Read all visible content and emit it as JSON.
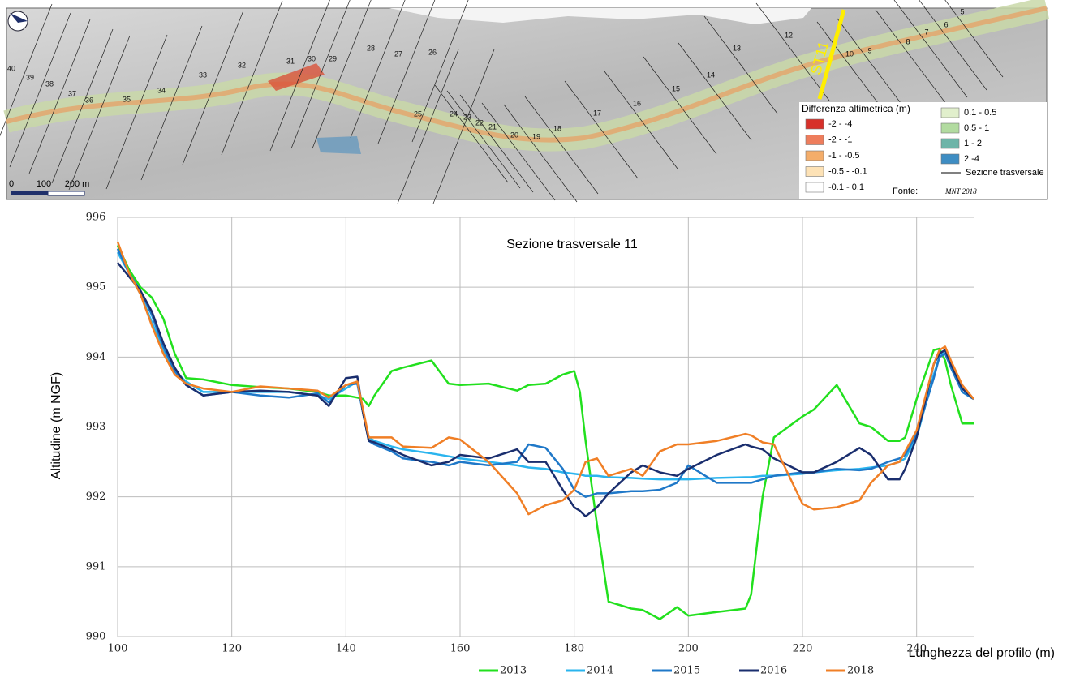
{
  "map": {
    "sections": [
      "40",
      "39",
      "38",
      "37",
      "36",
      "35",
      "34",
      "33",
      "32",
      "31",
      "30",
      "29",
      "28",
      "27",
      "26",
      "25",
      "24",
      "23",
      "22",
      "21",
      "20",
      "19",
      "18",
      "17",
      "16",
      "15",
      "14",
      "13",
      "12",
      "10",
      "9",
      "8",
      "7",
      "6",
      "5"
    ],
    "highlight": "ST11",
    "scale_labels": [
      "0",
      "100",
      "200 m"
    ],
    "legend_title": "Differenza altimetrica (m)",
    "legend": [
      {
        "label": "-2 - -4",
        "color": "#d7302a"
      },
      {
        "label": "-2 - -1",
        "color": "#ee7d5c"
      },
      {
        "label": "-1 - -0.5",
        "color": "#f4ad6a"
      },
      {
        "label": "-0.5 - -0.1",
        "color": "#fde2b6"
      },
      {
        "label": "-0.1 - 0.1",
        "color": "#ffffff"
      },
      {
        "label": "0.1 - 0.5",
        "color": "#e1efcc"
      },
      {
        "label": "0.5 - 1",
        "color": "#b2dba0"
      },
      {
        "label": "1 - 2",
        "color": "#6db4a8"
      },
      {
        "label": "2 -4",
        "color": "#3e8dc3"
      }
    ],
    "section_line_label": "Sezione trasversale",
    "source_label": "Fonte:",
    "source": "MNT 2018"
  },
  "chart_data": {
    "type": "line",
    "title": "Sezione trasversale 11",
    "x_label": "Lunghezza del profilo (m)",
    "y_label": "Altitudine (m NGF)",
    "xlim": [
      100,
      250
    ],
    "ylim": [
      990,
      996
    ],
    "xticks": [
      100,
      120,
      140,
      160,
      180,
      200,
      220,
      240
    ],
    "yticks": [
      990,
      991,
      992,
      993,
      994,
      995,
      996
    ],
    "grid": true,
    "legend": "bottom",
    "x": [
      100,
      102,
      104,
      106,
      108,
      110,
      112,
      115,
      120,
      125,
      130,
      135,
      137,
      140,
      142,
      143,
      144,
      145,
      148,
      150,
      155,
      158,
      160,
      165,
      170,
      172,
      175,
      178,
      180,
      181,
      182,
      184,
      186,
      190,
      192,
      195,
      198,
      200,
      205,
      210,
      211,
      213,
      215,
      220,
      222,
      226,
      230,
      232,
      235,
      237,
      238,
      240,
      243,
      244,
      245,
      246,
      248,
      250
    ],
    "series": [
      {
        "name": "2013",
        "color": "#22e01e",
        "values": [
          995.6,
          995.25,
          995.0,
          994.85,
          994.55,
          994.05,
          993.7,
          993.68,
          993.6,
          993.57,
          993.55,
          993.5,
          993.45,
          993.45,
          993.42,
          993.4,
          993.3,
          993.45,
          993.8,
          993.85,
          993.95,
          993.62,
          993.6,
          993.62,
          993.52,
          993.6,
          993.62,
          993.75,
          993.8,
          993.5,
          992.8,
          991.6,
          990.5,
          990.4,
          990.38,
          990.25,
          990.42,
          990.3,
          990.35,
          990.4,
          990.6,
          992.0,
          992.85,
          993.15,
          993.25,
          993.6,
          993.05,
          993.0,
          992.8,
          992.8,
          992.85,
          993.4,
          994.1,
          994.12,
          993.95,
          993.6,
          993.05,
          993.05
        ]
      },
      {
        "name": "2014",
        "color": "#2ab4ee",
        "values": [
          995.5,
          995.2,
          994.9,
          994.5,
          994.1,
          993.8,
          993.65,
          993.5,
          993.5,
          993.5,
          993.5,
          993.45,
          993.4,
          993.55,
          993.65,
          993.2,
          992.85,
          992.8,
          992.72,
          992.68,
          992.62,
          992.58,
          992.55,
          992.5,
          992.45,
          992.42,
          992.4,
          992.35,
          992.33,
          992.32,
          992.3,
          992.3,
          992.28,
          992.27,
          992.26,
          992.25,
          992.25,
          992.25,
          992.27,
          992.28,
          992.28,
          992.3,
          992.3,
          992.33,
          992.35,
          992.38,
          992.4,
          992.42,
          992.45,
          992.5,
          992.55,
          992.85,
          993.75,
          994.0,
          994.1,
          993.9,
          993.5,
          993.4
        ]
      },
      {
        "name": "2015",
        "color": "#1f78c8",
        "values": [
          995.55,
          995.2,
          994.95,
          994.6,
          994.15,
          993.8,
          993.6,
          993.45,
          993.5,
          993.45,
          993.42,
          993.48,
          993.35,
          993.6,
          993.62,
          993.2,
          992.8,
          992.75,
          992.65,
          992.55,
          992.5,
          992.45,
          992.5,
          992.45,
          992.5,
          992.75,
          992.7,
          992.4,
          992.1,
          992.05,
          992.0,
          992.05,
          992.05,
          992.08,
          992.08,
          992.1,
          992.2,
          992.45,
          992.2,
          992.2,
          992.2,
          992.25,
          992.3,
          992.35,
          992.35,
          992.4,
          992.38,
          992.4,
          992.5,
          992.55,
          992.6,
          992.9,
          993.7,
          994.0,
          994.05,
          993.85,
          993.5,
          993.4
        ]
      },
      {
        "name": "2016",
        "color": "#1a2e6e",
        "values": [
          995.35,
          995.15,
          994.95,
          994.65,
          994.2,
          993.85,
          993.6,
          993.45,
          993.5,
          993.52,
          993.5,
          993.45,
          993.3,
          993.7,
          993.72,
          993.2,
          992.8,
          992.78,
          992.68,
          992.6,
          992.45,
          992.5,
          992.6,
          992.55,
          992.68,
          992.5,
          992.5,
          992.1,
          991.85,
          991.8,
          991.72,
          991.85,
          992.05,
          992.35,
          992.45,
          992.35,
          992.3,
          992.4,
          992.6,
          992.75,
          992.72,
          992.68,
          992.55,
          992.35,
          992.35,
          992.5,
          992.7,
          992.6,
          992.25,
          992.25,
          992.4,
          992.85,
          993.9,
          994.05,
          994.1,
          993.9,
          993.55,
          993.4
        ]
      },
      {
        "name": "2018",
        "color": "#f07f26",
        "values": [
          995.65,
          995.2,
          994.9,
          994.45,
          994.05,
          993.75,
          993.62,
          993.55,
          993.5,
          993.58,
          993.55,
          993.52,
          993.42,
          993.6,
          993.65,
          993.25,
          992.85,
          992.85,
          992.85,
          992.72,
          992.7,
          992.85,
          992.82,
          992.5,
          992.05,
          991.75,
          991.88,
          991.95,
          992.1,
          992.3,
          992.5,
          992.55,
          992.3,
          992.4,
          992.3,
          992.65,
          992.75,
          992.75,
          992.8,
          992.9,
          992.88,
          992.78,
          992.75,
          991.9,
          991.82,
          991.85,
          991.95,
          992.2,
          992.45,
          992.5,
          992.65,
          992.95,
          993.9,
          994.1,
          994.15,
          993.95,
          993.6,
          993.4
        ]
      }
    ]
  }
}
